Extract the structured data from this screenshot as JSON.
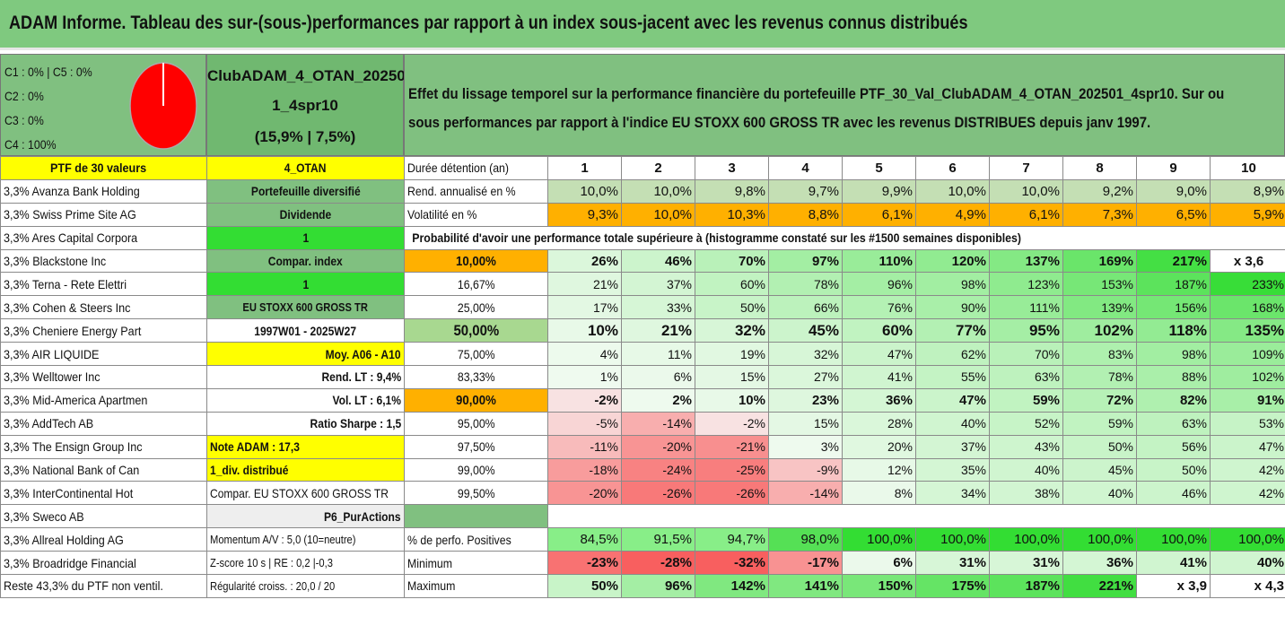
{
  "title": "ADAM Informe. Tableau des sur-(sous-)performances par rapport à un index sous-jacent avec les revenus connus distribués",
  "header": {
    "classes": [
      "C1 : 0% | C5 : 0%",
      "C2 : 0%",
      "C3 : 0%",
      "C4 : 100%"
    ],
    "portfolio_lines": [
      "ClubADAM_4_OTAN_20250",
      "1_4spr10",
      "(15,9% | 7,5%)"
    ],
    "description_lines": [
      "Effet du lissage temporel sur la performance financière du portefeuille PTF_30_Val_ClubADAM_4_OTAN_202501_4spr10. Sur ou",
      "sous performances par rapport à l'indice EU STOXX 600 GROSS TR avec les revenus DISTRIBUES depuis janv 1997."
    ]
  },
  "colors": {
    "green": "#80c080",
    "bright_green": "#33dd33",
    "yellow": "#ffff00",
    "orange": "#ffb000",
    "pie_red": "#ff0000"
  },
  "rows": [
    {
      "name": "PTF de 30 valeurs",
      "side": "4_OTAN",
      "label": "Durée détention (an)",
      "values": [
        "1",
        "2",
        "3",
        "4",
        "5",
        "6",
        "7",
        "8",
        "9",
        "10"
      ]
    },
    {
      "name": "3,3% Avanza Bank Holding",
      "side": "Portefeuille diversifié",
      "label": "Rend. annualisé en %",
      "values": [
        "10,0%",
        "10,0%",
        "9,8%",
        "9,7%",
        "9,9%",
        "10,0%",
        "10,0%",
        "9,2%",
        "9,0%",
        "8,9%"
      ]
    },
    {
      "name": "3,3% Swiss Prime Site AG",
      "side": "Dividende",
      "label": "Volatilité en %",
      "values": [
        "9,3%",
        "10,0%",
        "10,3%",
        "8,8%",
        "6,1%",
        "4,9%",
        "6,1%",
        "7,3%",
        "6,5%",
        "5,9%"
      ]
    },
    {
      "name": "3,3% Ares Capital Corpora",
      "side": "1",
      "label": "Probabilité d'avoir une performance totale supérieure à (histogramme constaté sur les #1500 semaines disponibles)",
      "values": []
    },
    {
      "name": "3,3% Blackstone Inc",
      "side": "Compar. index",
      "label": "10,00%",
      "values": [
        "26%",
        "46%",
        "70%",
        "97%",
        "110%",
        "120%",
        "137%",
        "169%",
        "217%",
        "x 3,6"
      ]
    },
    {
      "name": "3,3% Terna - Rete Elettri",
      "side": "1",
      "label": "16,67%",
      "values": [
        "21%",
        "37%",
        "60%",
        "78%",
        "96%",
        "98%",
        "123%",
        "153%",
        "187%",
        "233%"
      ]
    },
    {
      "name": "3,3% Cohen & Steers Inc",
      "side": "EU STOXX 600 GROSS TR",
      "label": "25,00%",
      "values": [
        "17%",
        "33%",
        "50%",
        "66%",
        "76%",
        "90%",
        "111%",
        "139%",
        "156%",
        "168%"
      ]
    },
    {
      "name": "3,3% Cheniere Energy Part",
      "side": "1997W01 - 2025W27",
      "label": "50,00%",
      "values": [
        "10%",
        "21%",
        "32%",
        "45%",
        "60%",
        "77%",
        "95%",
        "102%",
        "118%",
        "135%"
      ]
    },
    {
      "name": "3,3% AIR LIQUIDE",
      "side": "Moy. A06 - A10",
      "label": "75,00%",
      "values": [
        "4%",
        "11%",
        "19%",
        "32%",
        "47%",
        "62%",
        "70%",
        "83%",
        "98%",
        "109%"
      ]
    },
    {
      "name": "3,3% Welltower Inc",
      "side": "Rend. LT : 9,4%",
      "label": "83,33%",
      "values": [
        "1%",
        "6%",
        "15%",
        "27%",
        "41%",
        "55%",
        "63%",
        "78%",
        "88%",
        "102%"
      ]
    },
    {
      "name": "3,3% Mid-America Apartmen",
      "side": "Vol. LT : 6,1%",
      "label": "90,00%",
      "values": [
        "-2%",
        "2%",
        "10%",
        "23%",
        "36%",
        "47%",
        "59%",
        "72%",
        "82%",
        "91%"
      ]
    },
    {
      "name": "3,3% AddTech AB",
      "side": "Ratio Sharpe : 1,5",
      "label": "95,00%",
      "values": [
        "-5%",
        "-14%",
        "-2%",
        "15%",
        "28%",
        "40%",
        "52%",
        "59%",
        "63%",
        "53%"
      ]
    },
    {
      "name": "3,3% The Ensign Group Inc",
      "side": "Note ADAM : 17,3",
      "label": "97,50%",
      "values": [
        "-11%",
        "-20%",
        "-21%",
        "3%",
        "20%",
        "37%",
        "43%",
        "50%",
        "56%",
        "47%"
      ]
    },
    {
      "name": "3,3% National Bank of Can",
      "side": "1_div. distribué",
      "label": "99,00%",
      "values": [
        "-18%",
        "-24%",
        "-25%",
        "-9%",
        "12%",
        "35%",
        "40%",
        "45%",
        "50%",
        "42%"
      ]
    },
    {
      "name": "3,3% InterContinental Hot",
      "side": "Compar. EU STOXX 600 GROSS TR",
      "label": "99,50%",
      "values": [
        "-20%",
        "-26%",
        "-26%",
        "-14%",
        "8%",
        "34%",
        "38%",
        "40%",
        "46%",
        "42%"
      ]
    },
    {
      "name": "3,3% Sweco AB",
      "side": "P6_PurActions",
      "label": "",
      "values": []
    },
    {
      "name": "3,3% Allreal Holding AG",
      "side": "Momentum A/V : 5,0 (10=neutre)",
      "label": "% de perfo. Positives",
      "values": [
        "84,5%",
        "91,5%",
        "94,7%",
        "98,0%",
        "100,0%",
        "100,0%",
        "100,0%",
        "100,0%",
        "100,0%",
        "100,0%"
      ]
    },
    {
      "name": "3,3% Broadridge Financial",
      "side": "Z-score 10 s | RE : 0,2 |-0,3",
      "label": "Minimum",
      "values": [
        "-23%",
        "-28%",
        "-32%",
        "-17%",
        "6%",
        "31%",
        "31%",
        "36%",
        "41%",
        "40%"
      ]
    },
    {
      "name": "Reste 43,3% du PTF non ventil.",
      "side": "Régularité croiss. : 20,0 / 20",
      "label": "Maximum",
      "values": [
        "50%",
        "96%",
        "142%",
        "141%",
        "150%",
        "175%",
        "187%",
        "221%",
        "x 3,9",
        "x 4,3"
      ]
    }
  ]
}
